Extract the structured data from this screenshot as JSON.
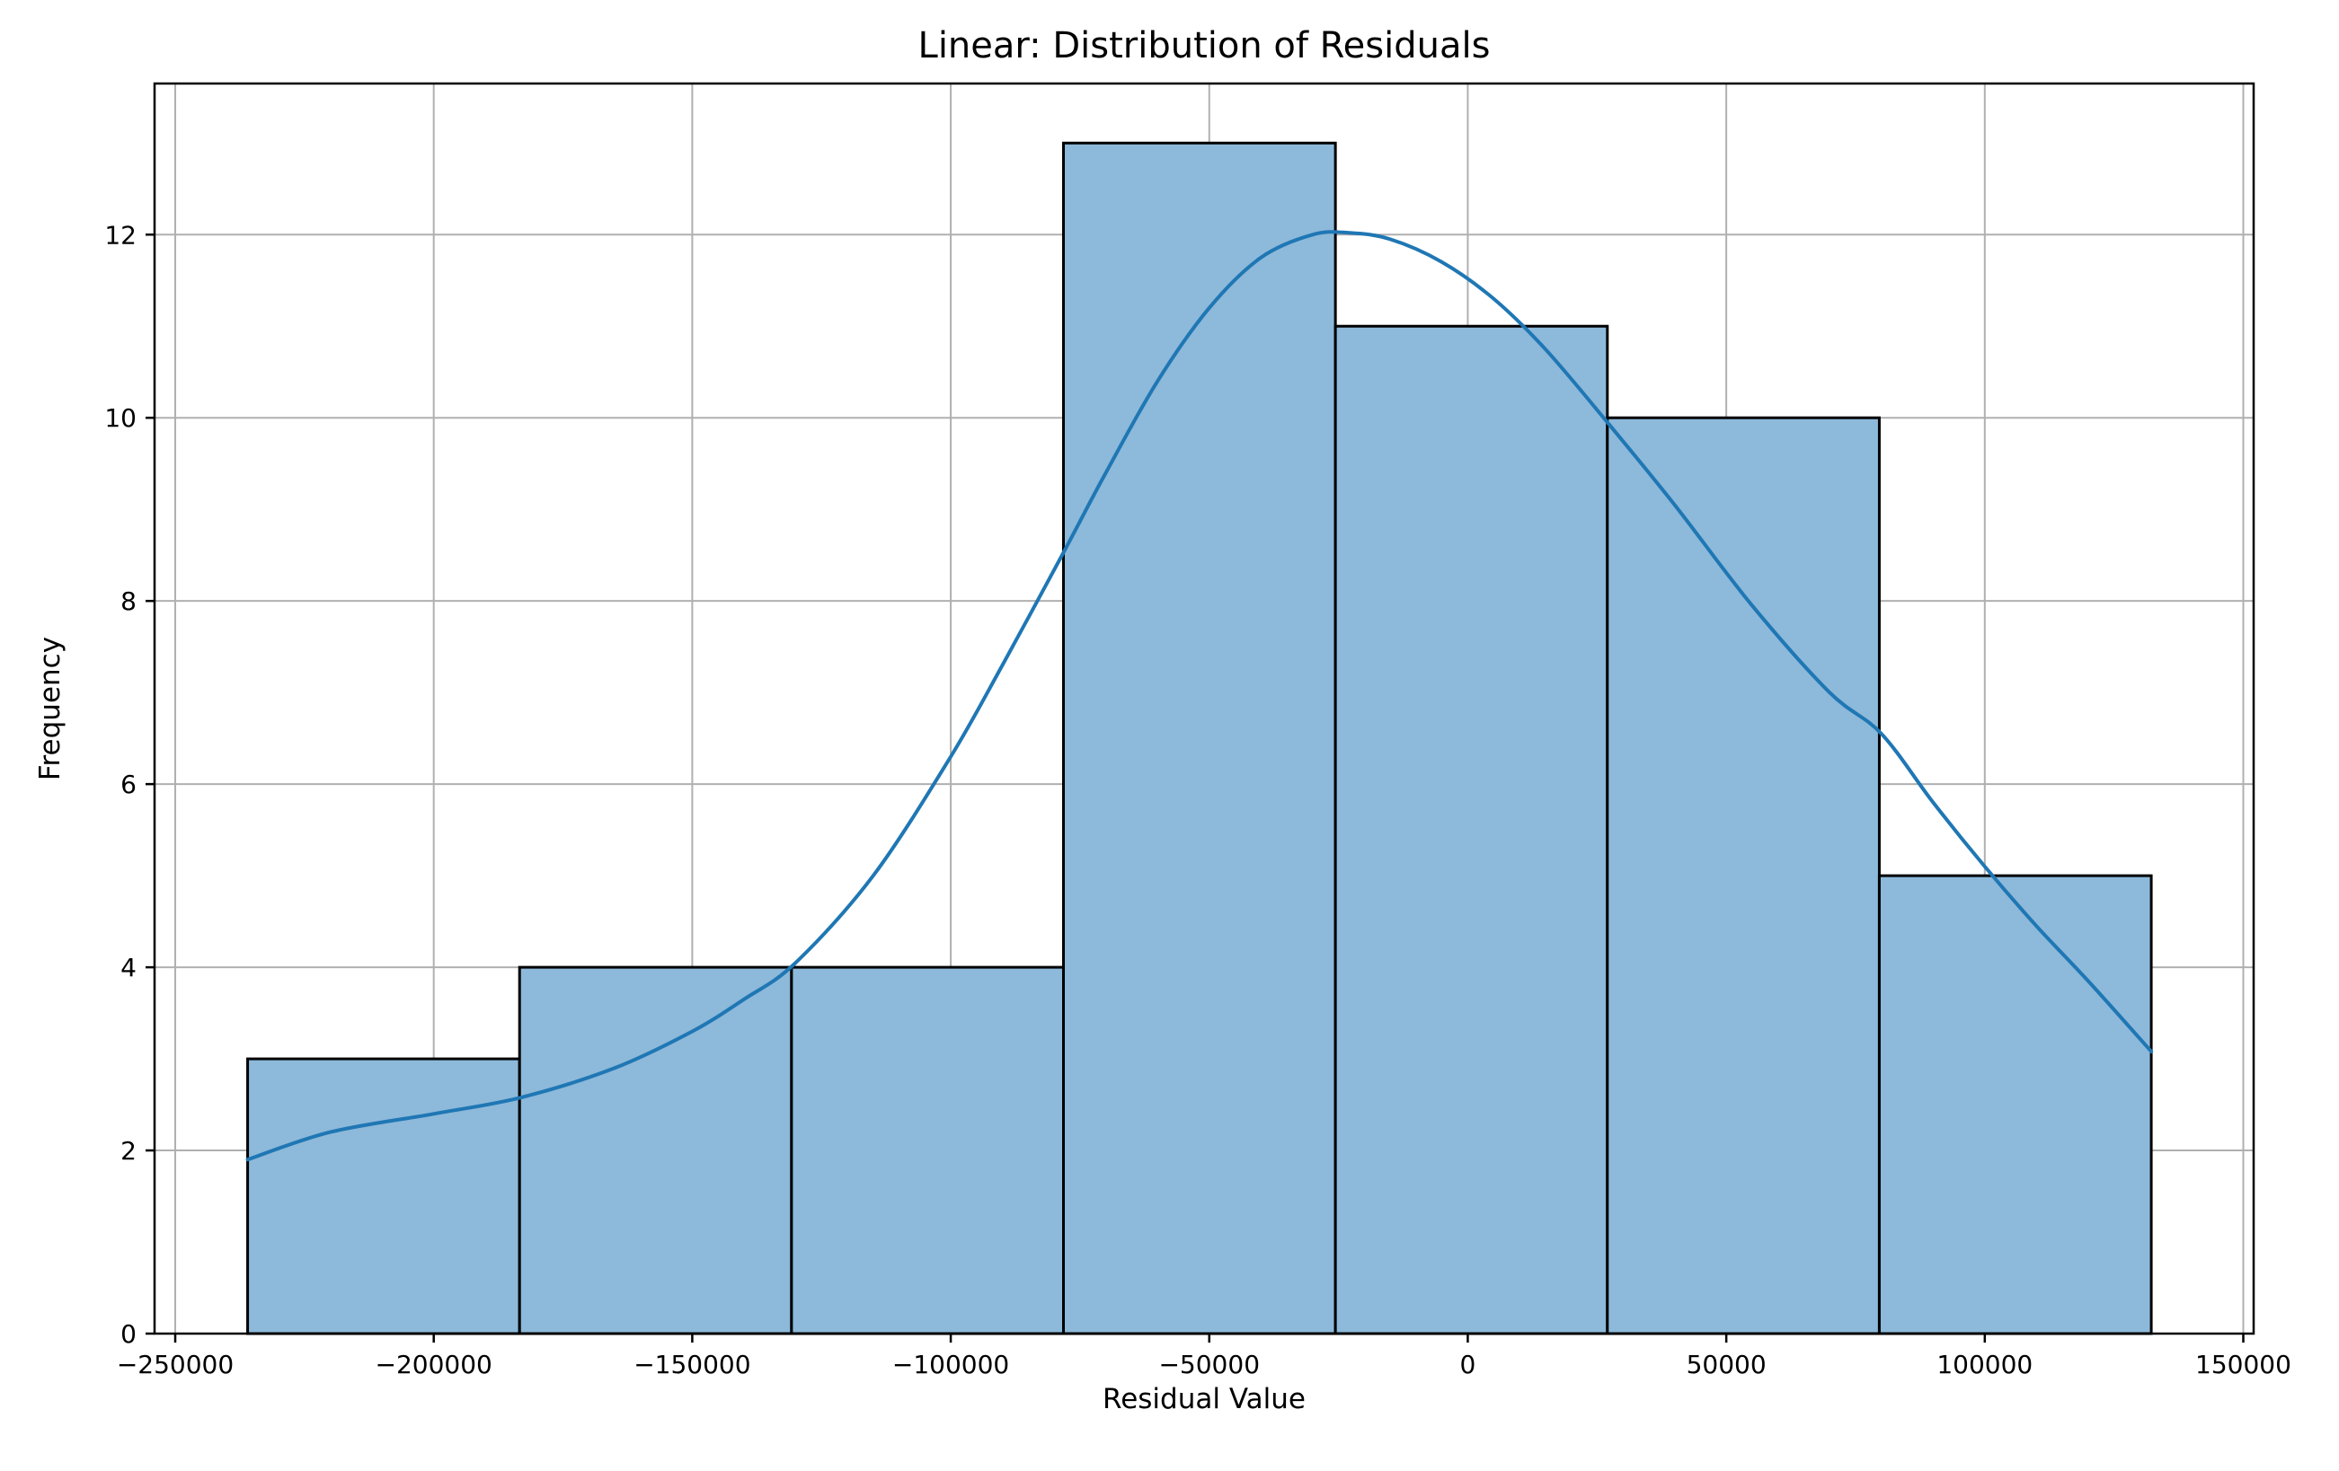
{
  "chart_data": {
    "type": "bar",
    "title": "Linear: Distribution of Residuals",
    "xlabel": "Residual Value",
    "ylabel": "Frequency",
    "xlim": [
      -254000,
      152000
    ],
    "ylim": [
      0,
      13.65
    ],
    "grid": true,
    "x_ticks": [
      -250000,
      -200000,
      -150000,
      -100000,
      -50000,
      0,
      50000,
      100000,
      150000
    ],
    "x_tick_labels": [
      "−250000",
      "−200000",
      "−150000",
      "−100000",
      "−50000",
      "0",
      "50000",
      "100000",
      "150000"
    ],
    "y_ticks": [
      0,
      2,
      4,
      6,
      8,
      10,
      12
    ],
    "y_tick_labels": [
      "0",
      "2",
      "4",
      "6",
      "8",
      "10",
      "12"
    ],
    "bins": [
      {
        "x0": -236000,
        "x1": -183400,
        "count": 3
      },
      {
        "x0": -183400,
        "x1": -130800,
        "count": 4
      },
      {
        "x0": -130800,
        "x1": -78200,
        "count": 4
      },
      {
        "x0": -78200,
        "x1": -25600,
        "count": 13
      },
      {
        "x0": -25600,
        "x1": 27000,
        "count": 11
      },
      {
        "x0": 27000,
        "x1": 79600,
        "count": 10
      },
      {
        "x0": 79600,
        "x1": 132200,
        "count": 5
      }
    ],
    "kde": {
      "x": [
        -236000,
        -220000,
        -200000,
        -183000,
        -165000,
        -150000,
        -140000,
        -130000,
        -115000,
        -100000,
        -90000,
        -78000,
        -70000,
        -60000,
        -50000,
        -40000,
        -30000,
        -23000,
        -15000,
        -5000,
        5000,
        15000,
        27000,
        40000,
        55000,
        70000,
        80000,
        90000,
        100000,
        110000,
        120000,
        132200
      ],
      "y": [
        1.9,
        2.2,
        2.4,
        2.58,
        2.9,
        3.3,
        3.65,
        4.05,
        5.0,
        6.3,
        7.3,
        8.55,
        9.4,
        10.4,
        11.2,
        11.75,
        12.0,
        12.02,
        11.95,
        11.7,
        11.3,
        10.75,
        9.95,
        9.05,
        7.95,
        7.0,
        6.55,
        5.8,
        5.1,
        4.45,
        3.85,
        3.08
      ]
    },
    "colors": {
      "bar_fill": "#8db9da",
      "bar_edge": "#000000",
      "kde_line": "#1f77b4",
      "grid": "#b0b0b0"
    }
  }
}
